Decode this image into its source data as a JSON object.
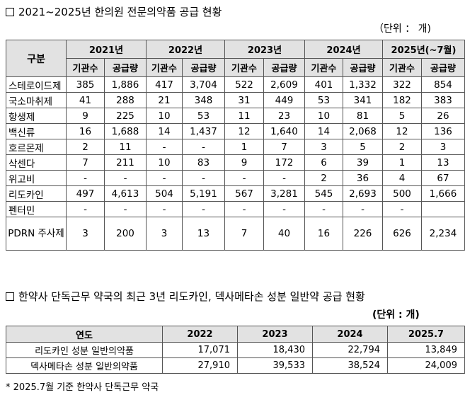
{
  "section1": {
    "title": "2021~2025년 한의원 전문의약품 공급 현황",
    "unit": "（단위 ： 개)",
    "header_label": "구분",
    "years": [
      "2021년",
      "2022년",
      "2023년",
      "2024년",
      "2025년(~7월)"
    ],
    "sub_headers": [
      "기관수",
      "공급량"
    ],
    "rows": [
      {
        "name": "스테로이드제",
        "values": [
          "385",
          "1,886",
          "417",
          "3,704",
          "522",
          "2,609",
          "401",
          "1,332",
          "322",
          "854"
        ]
      },
      {
        "name": "국소마취제",
        "values": [
          "41",
          "288",
          "21",
          "348",
          "31",
          "449",
          "53",
          "341",
          "182",
          "383"
        ]
      },
      {
        "name": "항생제",
        "values": [
          "9",
          "225",
          "10",
          "53",
          "11",
          "23",
          "10",
          "81",
          "5",
          "26"
        ]
      },
      {
        "name": "백신류",
        "values": [
          "16",
          "1,688",
          "14",
          "1,437",
          "12",
          "1,640",
          "14",
          "2,068",
          "12",
          "136"
        ]
      },
      {
        "name": "호르몬제",
        "values": [
          "2",
          "11",
          "-",
          "-",
          "1",
          "7",
          "3",
          "5",
          "2",
          "3"
        ]
      },
      {
        "name": "삭센다",
        "values": [
          "7",
          "211",
          "10",
          "83",
          "9",
          "172",
          "6",
          "39",
          "1",
          "13"
        ]
      },
      {
        "name": "위고비",
        "values": [
          "-",
          "-",
          "-",
          "-",
          "-",
          "-",
          "2",
          "36",
          "4",
          "67"
        ]
      },
      {
        "name": "리도카인",
        "values": [
          "497",
          "4,613",
          "504",
          "5,191",
          "567",
          "3,281",
          "545",
          "2,693",
          "500",
          "1,666"
        ]
      },
      {
        "name": "펜터민",
        "values": [
          "-",
          "-",
          "-",
          "-",
          "-",
          "-",
          "-",
          "-",
          "-",
          ""
        ]
      },
      {
        "name": "PDRN 주사제",
        "values": [
          "3",
          "200",
          "3",
          "13",
          "7",
          "40",
          "16",
          "226",
          "626",
          "2,234"
        ]
      }
    ]
  },
  "section2": {
    "title": "한약사 단독근무 약국의 최근 3년 리도카인, 덱사메타손 성분 일반약 공급 현황",
    "unit": "(단위 : 개)",
    "header_label": "연도",
    "columns": [
      "2022",
      "2023",
      "2024",
      "2025.7"
    ],
    "rows": [
      {
        "name": "리도카인 성분 일반의약품",
        "values": [
          "17,071",
          "18,430",
          "22,794",
          "13,849"
        ]
      },
      {
        "name": "덱사메타손 성분 일반의약품",
        "values": [
          "27,910",
          "39,533",
          "38,524",
          "24,009"
        ]
      }
    ],
    "note": "* 2025.7월 기준 한약사 단독근무 약국"
  }
}
